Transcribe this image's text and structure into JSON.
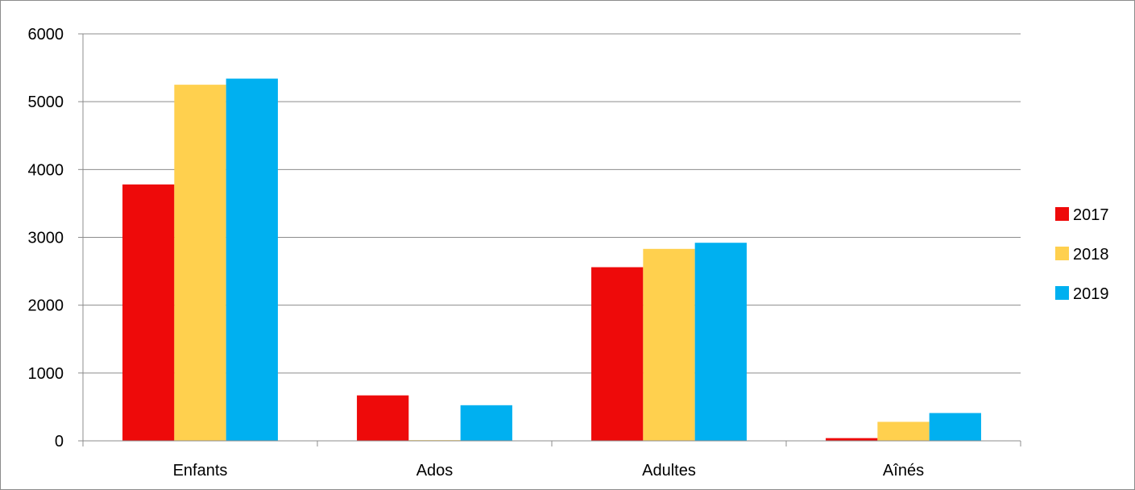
{
  "chart_data": {
    "type": "bar",
    "categories": [
      "Enfants",
      "Ados",
      "Adultes",
      "Aînés"
    ],
    "series": [
      {
        "name": "2017",
        "color": "#ee0a0a",
        "values": [
          3780,
          670,
          2560,
          40
        ]
      },
      {
        "name": "2018",
        "color": "#ffd04e",
        "values": [
          5250,
          10,
          2830,
          280
        ]
      },
      {
        "name": "2019",
        "color": "#00b0f0",
        "values": [
          5340,
          525,
          2920,
          410
        ]
      }
    ],
    "ylim": [
      0,
      6000
    ],
    "yticks": [
      0,
      1000,
      2000,
      3000,
      4000,
      5000,
      6000
    ],
    "grid": true,
    "legend_position": "right"
  }
}
